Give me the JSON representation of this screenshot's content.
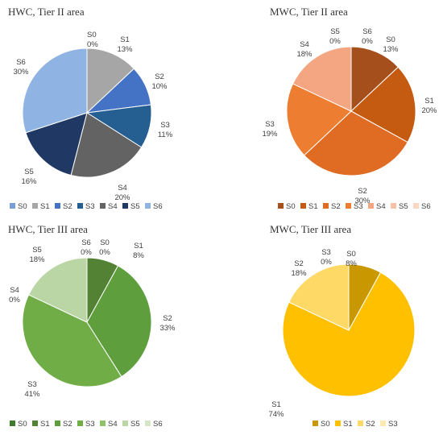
{
  "chart_data": [
    {
      "type": "pie",
      "title": "HWC, Tier II area",
      "categories": [
        "S0",
        "S1",
        "S2",
        "S3",
        "S4",
        "S5",
        "S6"
      ],
      "values": [
        0,
        13,
        10,
        11,
        20,
        16,
        30
      ],
      "value_labels": [
        "0%",
        "13%",
        "10%",
        "11%",
        "20%",
        "16%",
        "30%"
      ],
      "colors": [
        "#7a9fd6",
        "#a6a6a6",
        "#4472c4",
        "#255e91",
        "#636363",
        "#1f3864",
        "#8fb4e3"
      ],
      "legend": "bottom"
    },
    {
      "type": "pie",
      "title": "MWC, Tier II area",
      "categories": [
        "S0",
        "S1",
        "S2",
        "S3",
        "S4",
        "S5",
        "S6"
      ],
      "values": [
        13,
        20,
        30,
        19,
        18,
        0,
        0
      ],
      "value_labels": [
        "13%",
        "20%",
        "30%",
        "19%",
        "18%",
        "0%",
        "0%"
      ],
      "colors": [
        "#a5501c",
        "#c55a11",
        "#e06b22",
        "#ed7d31",
        "#f4a582",
        "#f8c0a6",
        "#fad7c4"
      ],
      "legend": "bottom"
    },
    {
      "type": "pie",
      "title": "HWC, Tier III area",
      "categories": [
        "S0",
        "S1",
        "S2",
        "S3",
        "S4",
        "S5",
        "S6"
      ],
      "values": [
        0,
        8,
        33,
        41,
        0,
        18,
        0
      ],
      "value_labels": [
        "0%",
        "8%",
        "33%",
        "41%",
        "0%",
        "18%",
        "0%"
      ],
      "colors": [
        "#3f7a2e",
        "#548235",
        "#5e9e3c",
        "#70ad47",
        "#90c26b",
        "#b9d6a4",
        "#d5e6c7"
      ],
      "legend": "bottom"
    },
    {
      "type": "pie",
      "title": "MWC, Tier III area",
      "categories": [
        "S0",
        "S1",
        "S2",
        "S3"
      ],
      "values": [
        8,
        74,
        18,
        0
      ],
      "value_labels": [
        "8%",
        "74%",
        "18%",
        "0%"
      ],
      "colors": [
        "#c99700",
        "#ffc000",
        "#ffd966",
        "#fde9b0"
      ],
      "legend": "bottom"
    }
  ]
}
